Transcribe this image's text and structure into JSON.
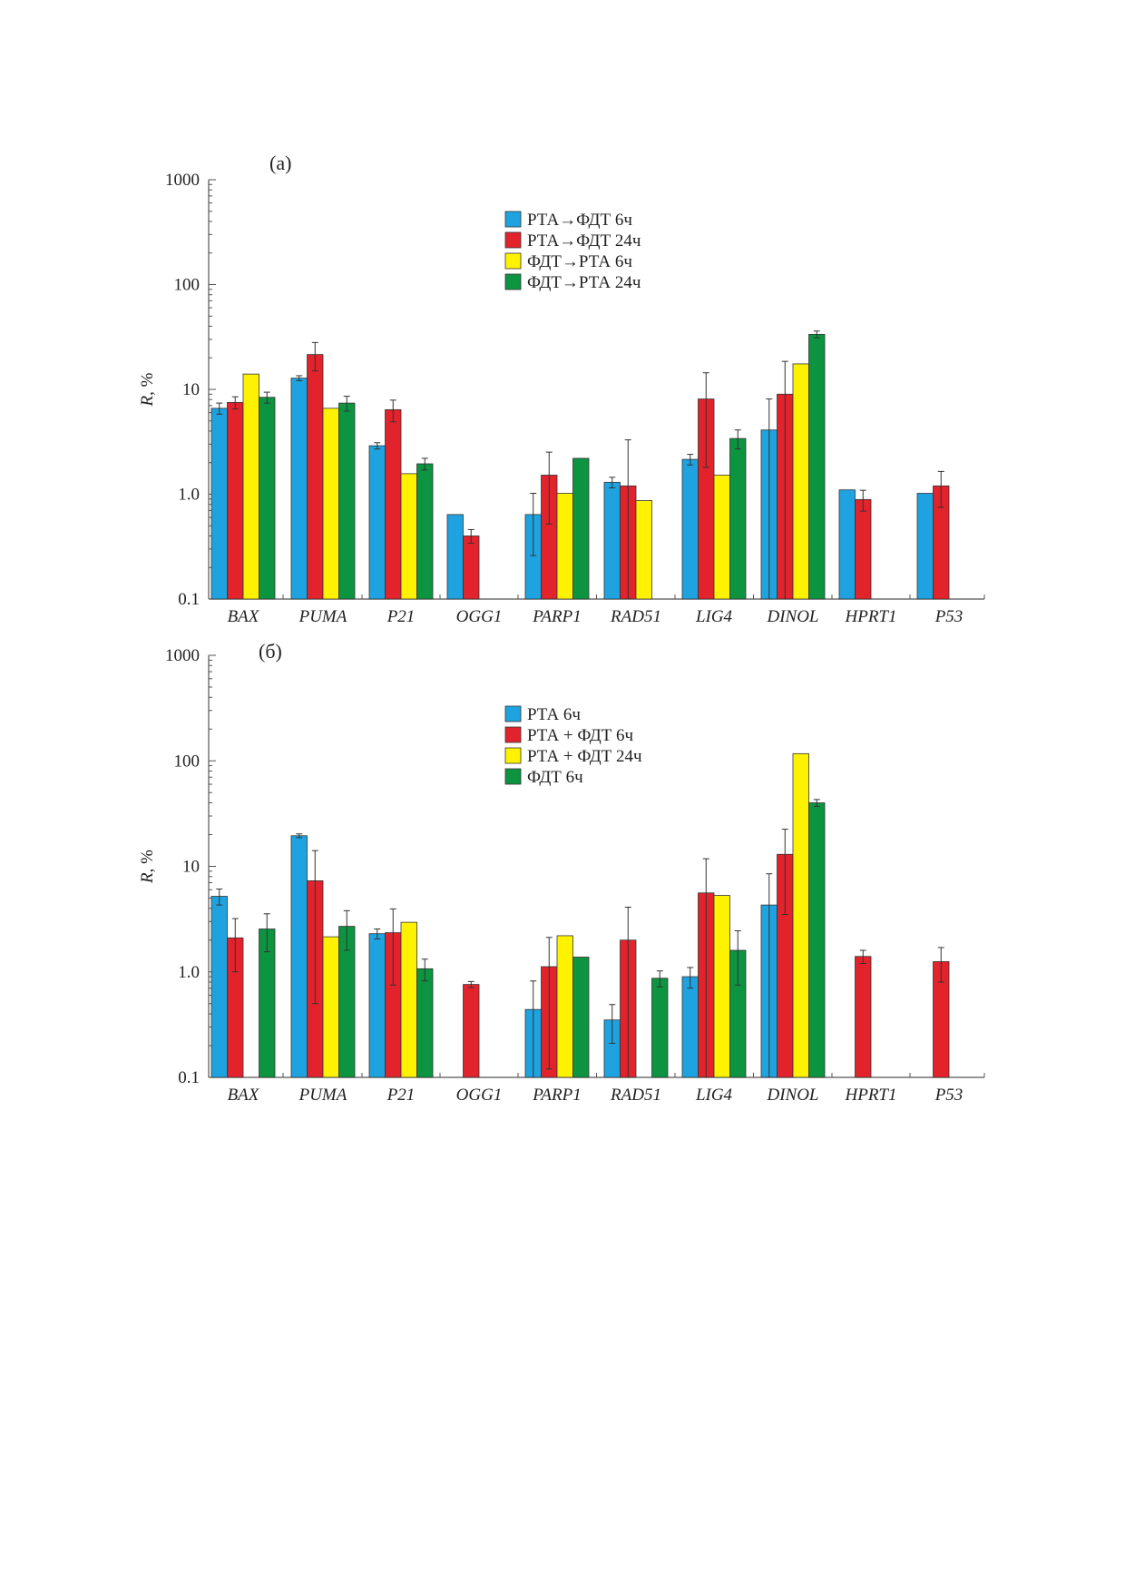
{
  "chart_data": [
    {
      "type": "bar",
      "panel_label": "(а)",
      "ylabel_var": "R",
      "ylabel_unit": ", %",
      "yscale": "log",
      "ylim": [
        0.1,
        1000
      ],
      "yticks": [
        "0.1",
        "1.0",
        "10",
        "100",
        "1000"
      ],
      "categories": [
        "BAX",
        "PUMA",
        "P21",
        "OGG1",
        "PARP1",
        "RAD51",
        "LIG4",
        "DINOL",
        "HPRT1",
        "P53"
      ],
      "legend_position": "top-center",
      "series": [
        {
          "name": "РТА→ФДТ 6ч",
          "color": "#1fa3e0",
          "values": [
            6.6,
            12.8,
            2.9,
            0.64,
            0.64,
            1.3,
            2.15,
            4.1,
            1.1,
            1.02
          ],
          "errors": [
            0.8,
            0.7,
            0.2,
            null,
            0.38,
            0.15,
            0.25,
            4.0,
            null,
            null
          ]
        },
        {
          "name": "РТА→ФДТ 24ч",
          "color": "#e3232c",
          "values": [
            7.5,
            21.5,
            6.4,
            0.4,
            1.52,
            1.2,
            8.1,
            9.0,
            0.89,
            1.2
          ],
          "errors": [
            1.0,
            6.5,
            1.5,
            0.06,
            1.0,
            2.1,
            6.3,
            9.5,
            0.2,
            0.45
          ]
        },
        {
          "name": "ФДТ→РТА 6ч",
          "color": "#fff200",
          "values": [
            14.0,
            6.6,
            1.57,
            null,
            1.02,
            0.87,
            1.52,
            17.5,
            null,
            null
          ],
          "errors": [
            null,
            null,
            null,
            null,
            null,
            null,
            null,
            null,
            null,
            null
          ]
        },
        {
          "name": "ФДТ→РТА 24ч",
          "color": "#0d9441",
          "values": [
            8.4,
            7.4,
            1.95,
            null,
            2.2,
            null,
            3.4,
            33.5,
            null,
            null
          ],
          "errors": [
            1.0,
            1.2,
            0.25,
            null,
            null,
            null,
            0.7,
            2.5,
            null,
            null
          ]
        }
      ]
    },
    {
      "type": "bar",
      "panel_label": "(б)",
      "ylabel_var": "R",
      "ylabel_unit": ", %",
      "yscale": "log",
      "ylim": [
        0.1,
        1000
      ],
      "yticks": [
        "0.1",
        "1.0",
        "10",
        "100",
        "1000"
      ],
      "categories": [
        "BAX",
        "PUMA",
        "P21",
        "OGG1",
        "PARP1",
        "RAD51",
        "LIG4",
        "DINOL",
        "HPRT1",
        "P53"
      ],
      "legend_position": "top-center",
      "series": [
        {
          "name": "РТА 6ч",
          "color": "#1fa3e0",
          "values": [
            5.2,
            19.5,
            2.3,
            null,
            0.44,
            0.35,
            0.9,
            4.3,
            null,
            null
          ],
          "errors": [
            0.9,
            0.8,
            0.25,
            null,
            0.38,
            0.14,
            0.2,
            4.2,
            null,
            null
          ]
        },
        {
          "name": "РТА + ФДТ 6ч",
          "color": "#e3232c",
          "values": [
            2.1,
            7.3,
            2.35,
            0.76,
            1.12,
            2.0,
            5.6,
            13.0,
            1.4,
            1.25
          ],
          "errors": [
            1.1,
            6.8,
            1.6,
            0.05,
            1.0,
            2.1,
            6.2,
            9.5,
            0.2,
            0.45
          ]
        },
        {
          "name": "РТА + ФДТ 24ч",
          "color": "#fff200",
          "values": [
            null,
            2.15,
            2.95,
            null,
            2.2,
            null,
            5.3,
            117.0,
            null,
            null
          ],
          "errors": [
            null,
            null,
            null,
            null,
            null,
            null,
            null,
            null,
            null,
            null
          ]
        },
        {
          "name": "ФДТ 6ч",
          "color": "#0d9441",
          "values": [
            2.55,
            2.7,
            1.07,
            null,
            1.38,
            0.87,
            1.6,
            40.0,
            null,
            null
          ],
          "errors": [
            1.0,
            1.1,
            0.25,
            null,
            null,
            0.15,
            0.85,
            3.0,
            null,
            null
          ]
        }
      ]
    }
  ]
}
